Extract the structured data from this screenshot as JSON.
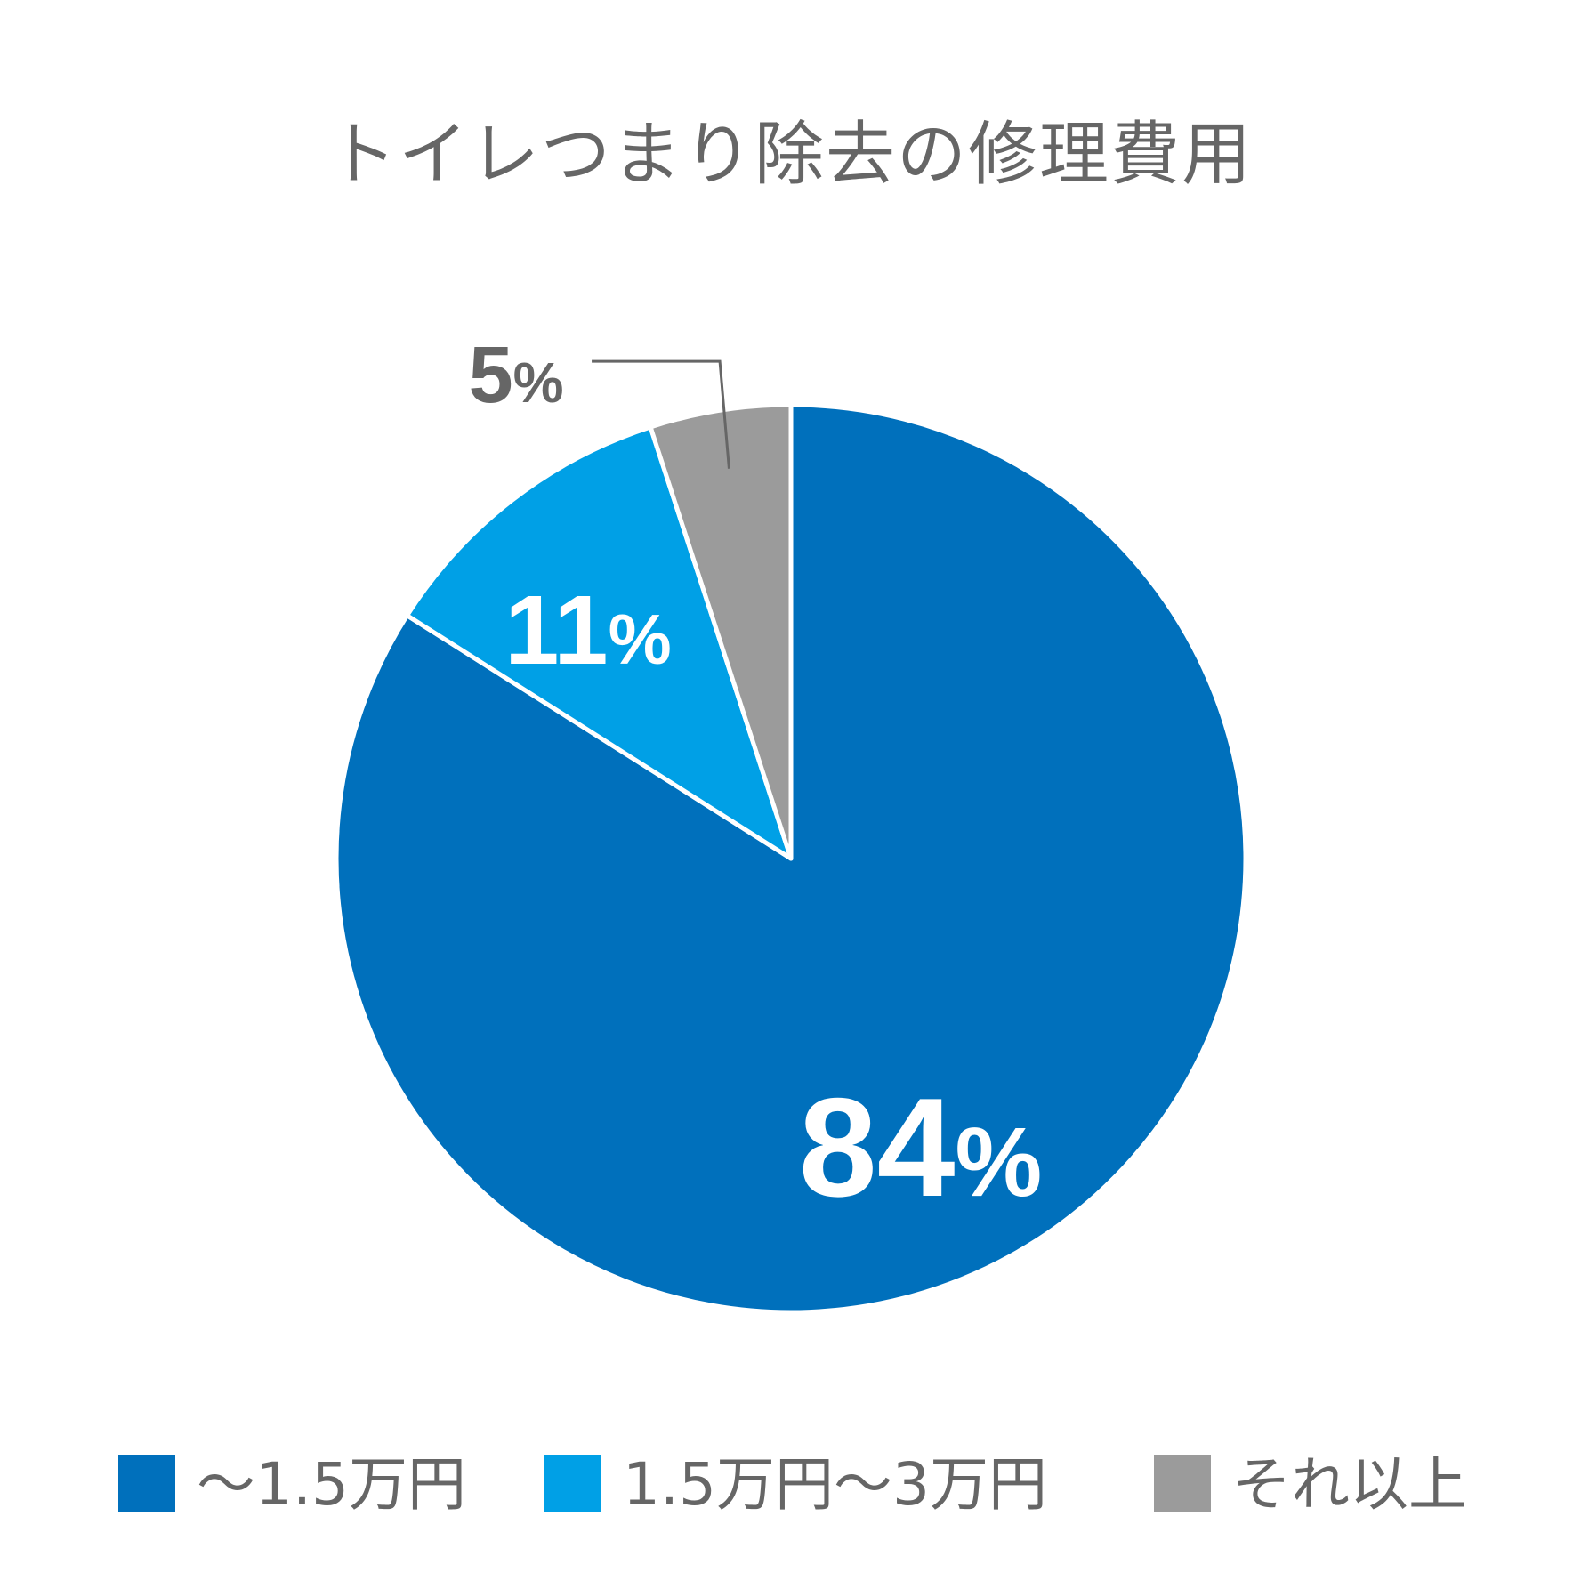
{
  "chart_data": {
    "type": "pie",
    "title": "トイレつまり除去の修理費用",
    "slices": [
      {
        "label": "〜1.5万円",
        "value": 84,
        "display": "84",
        "color": "#0070BC"
      },
      {
        "label": "1.5万円〜3万円",
        "value": 11,
        "display": "11",
        "color": "#00A0E6"
      },
      {
        "label": "それ以上",
        "value": 5,
        "display": "5",
        "color": "#9B9B9B"
      }
    ],
    "unit": "%",
    "start": "12 o'clock",
    "direction": "clockwise",
    "legend_position": "bottom"
  }
}
